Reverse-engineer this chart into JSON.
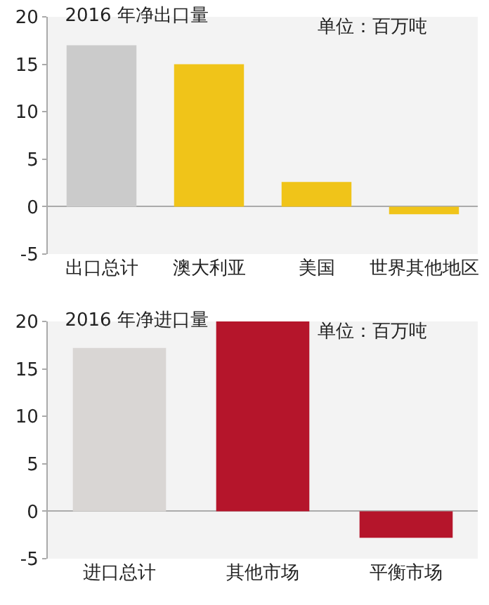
{
  "chart_data": [
    {
      "type": "bar",
      "title": "2016 年净出口量",
      "annotations": [
        "单位：百万吨"
      ],
      "categories": [
        "出口总计",
        "澳大利亚",
        "美国",
        "世界其他地区"
      ],
      "values": [
        17,
        15,
        2.6,
        -0.8
      ],
      "colors": [
        "#cbcbcb",
        "#f0c419",
        "#f0c419",
        "#f0c419"
      ],
      "ylim": [
        -5,
        20
      ],
      "yticks": [
        -5,
        0,
        5,
        10,
        15,
        20
      ]
    },
    {
      "type": "bar",
      "title": "2016 年净进口量",
      "annotations": [
        "单位：百万吨"
      ],
      "categories": [
        "进口总计",
        "其他市场",
        "平衡市场"
      ],
      "values": [
        17.2,
        20,
        -2.8
      ],
      "colors": [
        "#d9d6d4",
        "#b5152b",
        "#b5152b"
      ],
      "ylim": [
        -5,
        20
      ],
      "yticks": [
        -5,
        0,
        5,
        10,
        15,
        20
      ]
    }
  ]
}
